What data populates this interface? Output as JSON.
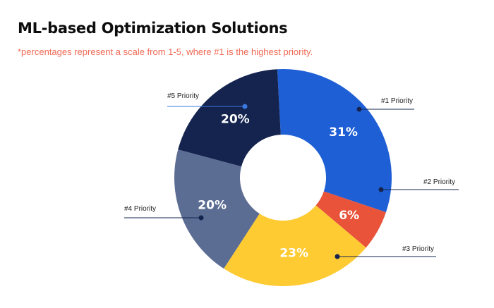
{
  "title": "ML-based Optimization Solutions",
  "subtitle": "*percentages represent a scale from 1-5, where #1 is the highest priority.",
  "chart_data": {
    "type": "pie",
    "donut": true,
    "title": "ML-based Optimization Solutions",
    "categories": [
      "#1 Priority",
      "#2 Priority",
      "#3 Priority",
      "#4 Priority",
      "#5 Priority"
    ],
    "values": [
      31,
      6,
      23,
      20,
      20
    ],
    "data_labels": [
      "31%",
      "6%",
      "23%",
      "20%",
      "20%"
    ],
    "colors": [
      "#1f5fd6",
      "#e8533a",
      "#fecb33",
      "#5c6d93",
      "#14244f"
    ],
    "order": "clockwise from top"
  }
}
